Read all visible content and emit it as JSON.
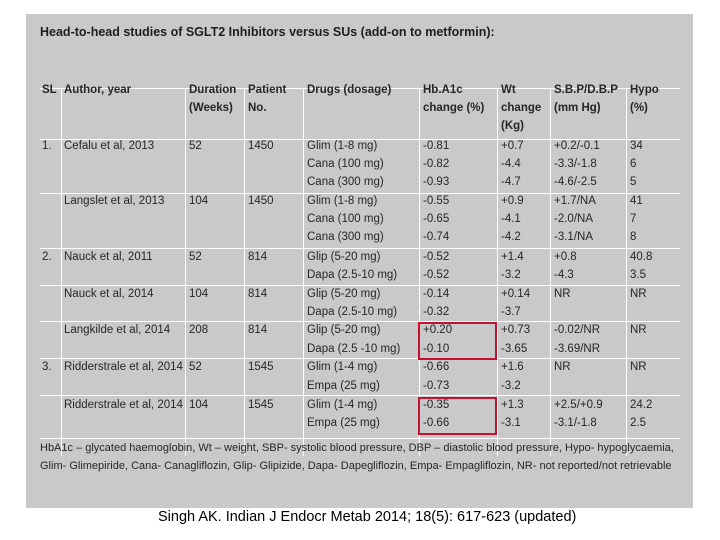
{
  "title": "Head-to-head studies of SGLT2 Inhibitors versus SUs (add-on to metformin):",
  "headers": {
    "sl": "SL",
    "author": "Author, year",
    "duration": [
      "Duration",
      "(Weeks)"
    ],
    "patient": [
      "Patient",
      "No."
    ],
    "drugs": "Drugs (dosage)",
    "hba1c": [
      "Hb.A1c",
      "change (%)"
    ],
    "wt": [
      "Wt",
      "change",
      "(Kg)"
    ],
    "sbp": [
      "S.B.P/D.B.P",
      "(mm Hg)"
    ],
    "hypo": [
      "Hypo",
      "(%)"
    ]
  },
  "rows": [
    {
      "sl": "1.",
      "author": "Cefalu et al, 2013",
      "duration": "52",
      "patients": "1450",
      "drug": "Glim (1-8 mg)",
      "hba1c": "-0.81",
      "wt": "+0.7",
      "bp": "+0.2/-0.1",
      "hypo": "34"
    },
    {
      "sl": "",
      "author": "",
      "duration": "",
      "patients": "",
      "drug": "Cana (100 mg)",
      "hba1c": "-0.82",
      "wt": "-4.4",
      "bp": "-3.3/-1.8",
      "hypo": "6"
    },
    {
      "sl": "",
      "author": "",
      "duration": "",
      "patients": "",
      "drug": "Cana (300 mg)",
      "hba1c": "-0.93",
      "wt": "-4.7",
      "bp": "-4.6/-2.5",
      "hypo": "5"
    },
    {
      "sl": "",
      "author": "Langslet et al, 2013",
      "duration": "104",
      "patients": "1450",
      "drug": "Glim (1-8 mg)",
      "hba1c": "-0.55",
      "wt": "+0.9",
      "bp": "+1.7/NA",
      "hypo": "41"
    },
    {
      "sl": "",
      "author": "",
      "duration": "",
      "patients": "",
      "drug": "Cana (100 mg)",
      "hba1c": "-0.65",
      "wt": "-4.1",
      "bp": "-2.0/NA",
      "hypo": "7"
    },
    {
      "sl": "",
      "author": "",
      "duration": "",
      "patients": "",
      "drug": "Cana (300 mg)",
      "hba1c": "-0.74",
      "wt": "-4.2",
      "bp": "-3.1/NA",
      "hypo": "8"
    },
    {
      "sl": "2.",
      "author": "Nauck et al, 2011",
      "duration": "52",
      "patients": "814",
      "drug": "Glip (5-20 mg)",
      "hba1c": "-0.52",
      "wt": "+1.4",
      "bp": "+0.8",
      "hypo": "40.8"
    },
    {
      "sl": "",
      "author": "",
      "duration": "",
      "patients": "",
      "drug": "Dapa (2.5-10 mg)",
      "hba1c": "-0.52",
      "wt": "-3.2",
      "bp": "-4.3",
      "hypo": "3.5"
    },
    {
      "sl": "",
      "author": "Nauck et al, 2014",
      "duration": "104",
      "patients": "814",
      "drug": "Glip (5-20 mg)",
      "hba1c": "-0.14",
      "wt": "+0.14",
      "bp": "NR",
      "hypo": "NR"
    },
    {
      "sl": "",
      "author": "",
      "duration": "",
      "patients": "",
      "drug": "Dapa (2.5-10 mg)",
      "hba1c": "-0.32",
      "wt": "-3.7",
      "bp": "",
      "hypo": ""
    },
    {
      "sl": "",
      "author": "Langkilde et al, 2014",
      "duration": "208",
      "patients": "814",
      "drug": "Glip (5-20 mg)",
      "hba1c": "+0.20",
      "wt": "+0.73",
      "bp": "-0.02/NR",
      "hypo": "NR"
    },
    {
      "sl": "",
      "author": "",
      "duration": "",
      "patients": "",
      "drug": "Dapa (2.5 -10 mg)",
      "hba1c": "-0.10",
      "wt": "-3.65",
      "bp": "-3.69/NR",
      "hypo": ""
    },
    {
      "sl": "3.",
      "author": "Ridderstrale et al, 2014",
      "duration": "52",
      "patients": "1545",
      "drug": "Glim (1-4 mg)",
      "hba1c": "-0.66",
      "wt": "+1.6",
      "bp": "NR",
      "hypo": "NR"
    },
    {
      "sl": "",
      "author": "",
      "duration": "",
      "patients": "",
      "drug": "Empa (25 mg)",
      "hba1c": "-0.73",
      "wt": "-3.2",
      "bp": "",
      "hypo": ""
    },
    {
      "sl": "",
      "author": "Ridderstrale et al, 2014",
      "duration": "104",
      "patients": "1545",
      "drug": "Glim (1-4 mg)",
      "hba1c": "-0.35",
      "wt": "+1.3",
      "bp": "+2.5/+0.9",
      "hypo": "24.2"
    },
    {
      "sl": "",
      "author": "",
      "duration": "",
      "patients": "",
      "drug": "Empa (25 mg)",
      "hba1c": "-0.66",
      "wt": "-3.1",
      "bp": "-3.1/-1.8",
      "hypo": "2.5"
    }
  ],
  "footnote": "HbA1c – glycated haemoglobin, Wt – weight, SBP- systolic blood pressure, DBP – diastolic blood pressure, Hypo- hypoglycaemia, Glim- Glimepiride, Cana- Canagliflozin, Glip- Glipizide, Dapa- Dapegliflozin, Empa- Empagliflozin, NR- not reported/not retrievable",
  "citation": "Singh AK. Indian J Endocr Metab 2014; 18(5): 617-623 (updated)",
  "colors": {
    "panel": "#c9c9c9",
    "highlight_box": "#c8102e"
  }
}
